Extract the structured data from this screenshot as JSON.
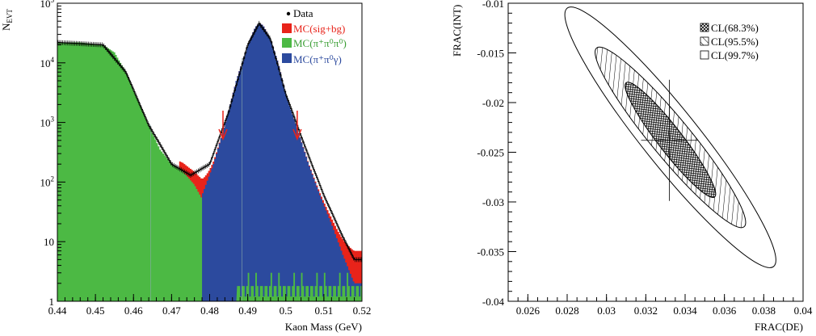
{
  "chart_data": [
    {
      "type": "histogram",
      "xlabel": "Kaon Mass (GeV)",
      "ylabel_main": "N",
      "ylabel_sub": "EVT",
      "xlim": [
        0.44,
        0.52
      ],
      "ylim": [
        1,
        100000
      ],
      "yscale": "log",
      "xticks": [
        "0.44",
        "0.45",
        "0.46",
        "0.47",
        "0.48",
        "0.49",
        "0.5",
        "0.51",
        "0.52"
      ],
      "yticks": [
        {
          "base": "1",
          "exp": ""
        },
        {
          "base": "10",
          "exp": ""
        },
        {
          "base": "10",
          "exp": "2"
        },
        {
          "base": "10",
          "exp": "3"
        },
        {
          "base": "10",
          "exp": "4"
        },
        {
          "base": "10",
          "exp": "5"
        }
      ],
      "legend": [
        {
          "label": "Data",
          "color": "#000000",
          "marker": "dot"
        },
        {
          "label": "MC(sig+bg)",
          "color": "#e8231a"
        },
        {
          "label": "MC(π⁺π⁰π⁰)",
          "color": "#4cb944"
        },
        {
          "label": "MC(π⁺π⁰γ)",
          "color": "#2c4a9e"
        }
      ],
      "cut_arrows_x": [
        0.4835,
        0.503
      ],
      "series": [
        {
          "name": "MC(π⁺π⁰π⁰)",
          "x": [
            0.44,
            0.446,
            0.452,
            0.455,
            0.458,
            0.461,
            0.464,
            0.467,
            0.47,
            0.473,
            0.476,
            0.479,
            0.482,
            0.485
          ],
          "values": [
            22000,
            22000,
            20000,
            15000,
            7000,
            2500,
            900,
            350,
            200,
            150,
            90,
            40,
            15,
            5
          ]
        },
        {
          "name": "MC(π⁺π⁰γ)",
          "x": [
            0.478,
            0.481,
            0.484,
            0.487,
            0.49,
            0.492,
            0.493,
            0.494,
            0.496,
            0.498,
            0.5,
            0.503,
            0.506,
            0.509,
            0.512,
            0.515,
            0.518
          ],
          "values": [
            60,
            200,
            900,
            5000,
            20000,
            40000,
            46000,
            43000,
            25000,
            10000,
            3000,
            800,
            200,
            60,
            20,
            6,
            2
          ]
        },
        {
          "name": "Data",
          "x": [
            0.44,
            0.452,
            0.458,
            0.464,
            0.47,
            0.475,
            0.48,
            0.485,
            0.49,
            0.493,
            0.496,
            0.5,
            0.505,
            0.51,
            0.515,
            0.518
          ],
          "values": [
            22000,
            20000,
            7000,
            900,
            200,
            130,
            200,
            1500,
            20000,
            46000,
            25000,
            3000,
            400,
            60,
            12,
            5
          ]
        }
      ]
    },
    {
      "type": "contour",
      "xlabel": "FRAC(DE)",
      "ylabel": "FRAC(INT)",
      "xlim": [
        0.025,
        0.04
      ],
      "ylim": [
        -0.04,
        -0.01
      ],
      "xticks": [
        "0.026",
        "0.028",
        "0.03",
        "0.032",
        "0.034",
        "0.036",
        "0.038",
        "0.04"
      ],
      "yticks": [
        "-0.01",
        "-0.015",
        "-0.02",
        "-0.025",
        "-0.03",
        "-0.035",
        "-0.04"
      ],
      "center": [
        0.0332,
        -0.0238
      ],
      "legend": [
        {
          "label": "CL(68.3%)",
          "fill": "crosshatch"
        },
        {
          "label": "CL(95.5%)",
          "fill": "hatch"
        },
        {
          "label": "CL(99.7%)",
          "fill": "none"
        }
      ],
      "contours": [
        {
          "level": "68.3%",
          "x_extent": [
            0.031,
            0.0355
          ],
          "y_extent": [
            -0.0295,
            -0.018
          ]
        },
        {
          "level": "95.5%",
          "x_extent": [
            0.0295,
            0.037
          ],
          "y_extent": [
            -0.0325,
            -0.0145
          ]
        },
        {
          "level": "99.7%",
          "x_extent": [
            0.028,
            0.0385
          ],
          "y_extent": [
            -0.0365,
            -0.0105
          ]
        }
      ]
    }
  ]
}
